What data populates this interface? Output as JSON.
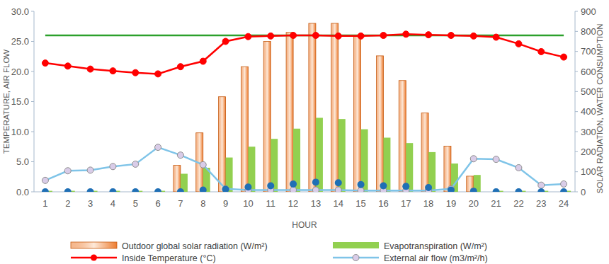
{
  "chart_data": {
    "type": "bar",
    "x_label": "HOUR",
    "y_label": "TEMPERATURE, AIR FLOW",
    "y2_label": "SOLAR RADIATION, WATER CONSUMPTION",
    "categories": [
      "1",
      "2",
      "3",
      "4",
      "5",
      "6",
      "7",
      "8",
      "9",
      "10",
      "11",
      "12",
      "13",
      "14",
      "15",
      "16",
      "17",
      "18",
      "19",
      "20",
      "21",
      "22",
      "23",
      "24"
    ],
    "ylim": [
      0,
      30
    ],
    "yticks": [
      {
        "value": 0,
        "label": "0.0"
      },
      {
        "value": 5,
        "label": "5.0"
      },
      {
        "value": 10,
        "label": "10.0"
      },
      {
        "value": 15,
        "label": "15.0"
      },
      {
        "value": 20,
        "label": "20.0"
      },
      {
        "value": 25,
        "label": "25.0"
      },
      {
        "value": 30,
        "label": "30.0"
      }
    ],
    "y2lim": [
      0,
      900
    ],
    "y2ticks": [
      0,
      100,
      200,
      300,
      400,
      500,
      600,
      700,
      800,
      900
    ],
    "grid": false,
    "legend": "bottom",
    "series": [
      {
        "name": "Outdoor global solar radiation (W/m²)",
        "type": "bar",
        "axis": "y2",
        "color": "#ed7d31",
        "values": [
          0,
          0,
          0,
          0,
          0,
          0,
          132,
          294,
          474,
          624,
          750,
          795,
          840,
          840,
          774,
          678,
          555,
          393,
          228,
          78,
          0,
          0,
          0,
          0
        ]
      },
      {
        "name": "Evapotranspiration (W/m²)",
        "type": "bar",
        "axis": "y2",
        "color": "#92d050",
        "values": [
          5,
          5,
          5,
          5,
          5,
          5,
          90,
          120,
          171,
          225,
          264,
          315,
          369,
          363,
          312,
          270,
          243,
          198,
          141,
          84,
          5,
          5,
          5,
          5
        ]
      },
      {
        "name": "Inside Temperature (°C)",
        "type": "line",
        "color": "#ff0000",
        "marker": "circle",
        "line_style": "solid",
        "values": [
          21.4,
          20.9,
          20.4,
          20.1,
          19.8,
          19.6,
          20.8,
          21.7,
          25.0,
          25.8,
          25.9,
          26.0,
          26.0,
          25.9,
          25.9,
          26.0,
          26.2,
          26.1,
          26.0,
          25.9,
          25.7,
          24.6,
          23.3,
          22.4
        ]
      },
      {
        "name": "External air flow (m3/m²/h)",
        "type": "line",
        "color": "#7fc4e8",
        "marker": "circle",
        "line_style": "solid",
        "values": [
          1.9,
          3.5,
          3.6,
          4.2,
          4.6,
          7.4,
          6.1,
          4.5,
          0.5,
          0.3,
          0.3,
          0.3,
          0.3,
          0.3,
          0.2,
          0.2,
          0.2,
          0.2,
          0.5,
          5.5,
          5.4,
          4.0,
          1.1,
          1.3
        ]
      },
      {
        "type": "line",
        "axis": "y2",
        "color": "#1f6fb5",
        "marker": "circle",
        "line_style": "none",
        "values": [
          0,
          0,
          0,
          0,
          0,
          0,
          0,
          9,
          12,
          24,
          30,
          39,
          48,
          45,
          36,
          30,
          27,
          21,
          9,
          3,
          0,
          0,
          0,
          0
        ]
      },
      {
        "type": "line",
        "color": "#2ca02c",
        "marker": "none",
        "line_style": "solid",
        "values": [
          26,
          26,
          26,
          26,
          26,
          26,
          26,
          26,
          26,
          26,
          26,
          26,
          26,
          26,
          26,
          26,
          26,
          26,
          26,
          26,
          26,
          26,
          26,
          26
        ]
      }
    ]
  }
}
